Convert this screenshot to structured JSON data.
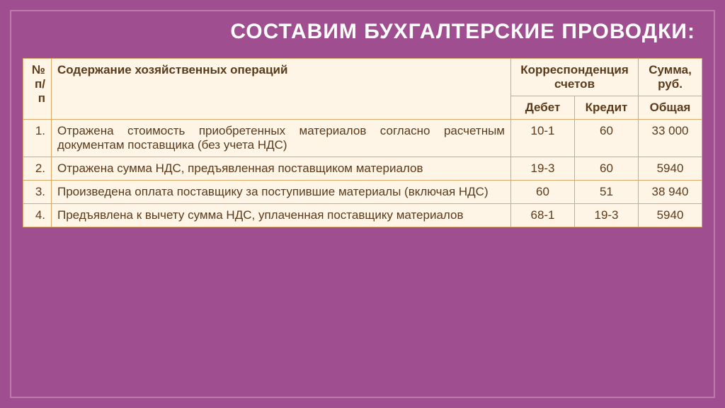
{
  "slide": {
    "background_color": "#9f4f8f",
    "border_color": "#c07aa9",
    "title": "СОСТАВИМ БУХГАЛТЕРСКИЕ ПРОВОДКИ:",
    "title_color": "#ffffff",
    "title_fontsize": 30
  },
  "table": {
    "background_color": "#fff5e6",
    "border_color": "#d9a96a",
    "text_color": "#5a3a1a",
    "header_fontsize": 17,
    "body_fontsize": 17,
    "headers": {
      "num": "№ п/п",
      "desc": "Содержание хозяйственных операций",
      "corr": "Корреспонденция счетов",
      "sum": "Сумма, руб.",
      "debit": "Дебет",
      "credit": "Кредит",
      "total": "Общая"
    },
    "rows": [
      {
        "num": "1.",
        "desc": "Отражена стоимость приобретенных материалов согласно расчетным документам поставщика (без учета НДС)",
        "debit": "10-1",
        "credit": "60",
        "sum": "33 000"
      },
      {
        "num": "2.",
        "desc": "Отражена сумма НДС, предъявленная поставщиком материалов",
        "debit": "19-3",
        "credit": "60",
        "sum": "5940"
      },
      {
        "num": "3.",
        "desc": "Произведена оплата поставщику за поступившие материалы (включая НДС)",
        "debit": "60",
        "credit": "51",
        "sum": "38 940"
      },
      {
        "num": "4.",
        "desc": "Предъявлена к вычету сумма НДС, уплаченная поставщику материалов",
        "debit": "68-1",
        "credit": "19-3",
        "sum": "5940"
      }
    ]
  }
}
